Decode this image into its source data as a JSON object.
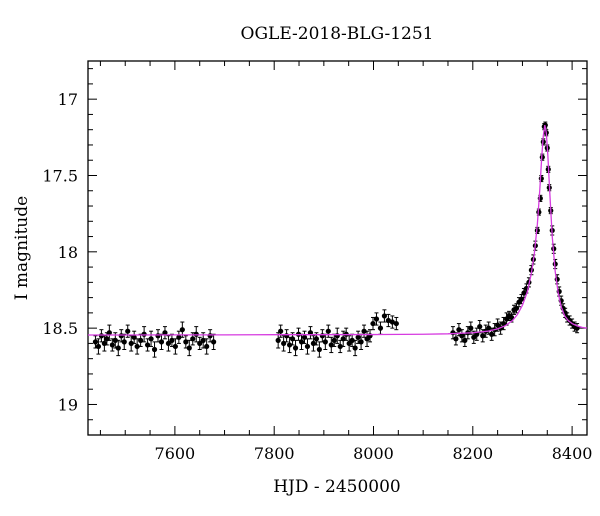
{
  "chart_data": {
    "type": "scatter",
    "title": "OGLE-2018-BLG-1251",
    "xlabel": "HJD - 2450000",
    "ylabel": "I magnitude",
    "xlim": [
      7425,
      8430
    ],
    "ylim": [
      19.2,
      16.75
    ],
    "y_inverted": true,
    "x_ticks": [
      7600,
      7800,
      8000,
      8200,
      8400
    ],
    "x_tick_labels": [
      "7600",
      "7800",
      "8000",
      "8200",
      "8400"
    ],
    "y_ticks": [
      17,
      17.5,
      18,
      18.5,
      19
    ],
    "y_tick_labels": [
      "17",
      "17.5",
      "18",
      "18.5",
      "19"
    ],
    "grid": false,
    "legend": "none",
    "colors": {
      "points": "#000000",
      "errorbars": "#000000",
      "model": "#d63be0"
    },
    "series": [
      {
        "kind": "points_with_errorbars",
        "x": [
          7440,
          7446,
          7452,
          7458,
          7463,
          7468,
          7474,
          7480,
          7486,
          7492,
          7498,
          7505,
          7512,
          7518,
          7524,
          7531,
          7538,
          7545,
          7552,
          7559,
          7566,
          7573,
          7580,
          7587,
          7594,
          7601,
          7608,
          7615,
          7622,
          7629,
          7636,
          7643,
          7650,
          7657,
          7664,
          7671,
          7678,
          7808,
          7813,
          7819,
          7825,
          7831,
          7837,
          7843,
          7849,
          7855,
          7861,
          7867,
          7873,
          7879,
          7885,
          7891,
          7897,
          7903,
          7909,
          7915,
          7921,
          7927,
          7933,
          7939,
          7945,
          7951,
          7957,
          7963,
          7969,
          7975,
          7981,
          7987,
          7993,
          7999,
          8006,
          8014,
          8022,
          8030,
          8038,
          8046,
          8160,
          8166,
          8172,
          8178,
          8184,
          8190,
          8196,
          8202,
          8208,
          8214,
          8220,
          8226,
          8232,
          8238,
          8244,
          8250,
          8256,
          8262,
          8268,
          8273,
          8278,
          8283,
          8288,
          8293,
          8298,
          8303,
          8308,
          8313,
          8318,
          8322,
          8326,
          8330,
          8333,
          8336,
          8338,
          8340,
          8342,
          8344,
          8346,
          8348,
          8350,
          8352,
          8354,
          8357,
          8360,
          8363,
          8366,
          8370,
          8374,
          8378,
          8382,
          8386,
          8390,
          8395,
          8400,
          8405,
          8410
        ],
        "y": [
          18.59,
          18.62,
          18.55,
          18.6,
          18.57,
          18.53,
          18.61,
          18.58,
          18.63,
          18.55,
          18.59,
          18.52,
          18.6,
          18.56,
          18.62,
          18.58,
          18.54,
          18.61,
          18.57,
          18.64,
          18.55,
          18.59,
          18.53,
          18.6,
          18.58,
          18.62,
          18.56,
          18.51,
          18.59,
          18.63,
          18.57,
          18.54,
          18.6,
          18.58,
          18.62,
          18.55,
          18.59,
          18.58,
          18.52,
          18.6,
          18.55,
          18.61,
          18.57,
          18.63,
          18.54,
          18.59,
          18.56,
          18.62,
          18.53,
          18.6,
          18.57,
          18.64,
          18.55,
          18.59,
          18.52,
          18.61,
          18.58,
          18.55,
          18.62,
          18.57,
          18.54,
          18.6,
          18.58,
          18.63,
          18.56,
          18.59,
          18.52,
          18.57,
          18.55,
          18.47,
          18.44,
          18.5,
          18.42,
          18.45,
          18.46,
          18.47,
          18.53,
          18.57,
          18.51,
          18.55,
          18.58,
          18.53,
          18.5,
          18.56,
          18.54,
          18.49,
          18.55,
          18.52,
          18.5,
          18.54,
          18.51,
          18.48,
          18.5,
          18.47,
          18.44,
          18.42,
          18.43,
          18.38,
          18.37,
          18.33,
          18.31,
          18.27,
          18.24,
          18.2,
          18.12,
          18.05,
          17.96,
          17.86,
          17.74,
          17.65,
          17.52,
          17.38,
          17.28,
          17.18,
          17.17,
          17.22,
          17.32,
          17.46,
          17.58,
          17.73,
          17.86,
          17.98,
          18.08,
          18.18,
          18.26,
          18.32,
          18.37,
          18.4,
          18.43,
          18.45,
          18.47,
          18.49,
          18.5
        ],
        "err": [
          0.04,
          0.05,
          0.04,
          0.05,
          0.04,
          0.05,
          0.04,
          0.05,
          0.05,
          0.04,
          0.05,
          0.04,
          0.05,
          0.04,
          0.05,
          0.04,
          0.05,
          0.04,
          0.05,
          0.05,
          0.04,
          0.05,
          0.04,
          0.05,
          0.04,
          0.05,
          0.04,
          0.05,
          0.04,
          0.05,
          0.04,
          0.05,
          0.04,
          0.05,
          0.05,
          0.04,
          0.05,
          0.05,
          0.04,
          0.05,
          0.04,
          0.05,
          0.04,
          0.05,
          0.04,
          0.05,
          0.04,
          0.05,
          0.04,
          0.05,
          0.04,
          0.05,
          0.04,
          0.05,
          0.04,
          0.05,
          0.04,
          0.05,
          0.04,
          0.05,
          0.04,
          0.05,
          0.04,
          0.05,
          0.04,
          0.05,
          0.04,
          0.05,
          0.04,
          0.04,
          0.04,
          0.04,
          0.04,
          0.04,
          0.04,
          0.04,
          0.04,
          0.04,
          0.04,
          0.04,
          0.04,
          0.04,
          0.04,
          0.04,
          0.04,
          0.04,
          0.04,
          0.04,
          0.04,
          0.04,
          0.04,
          0.04,
          0.04,
          0.04,
          0.04,
          0.03,
          0.03,
          0.03,
          0.03,
          0.03,
          0.03,
          0.03,
          0.03,
          0.03,
          0.03,
          0.03,
          0.03,
          0.02,
          0.02,
          0.02,
          0.02,
          0.02,
          0.02,
          0.02,
          0.02,
          0.02,
          0.02,
          0.02,
          0.02,
          0.02,
          0.03,
          0.03,
          0.03,
          0.03,
          0.03,
          0.03,
          0.03,
          0.03,
          0.03,
          0.03,
          0.03,
          0.03,
          0.03
        ]
      },
      {
        "kind": "model_curve",
        "x": [
          7425,
          7500,
          7600,
          7700,
          7800,
          7900,
          8000,
          8100,
          8150,
          8200,
          8230,
          8250,
          8265,
          8280,
          8290,
          8300,
          8310,
          8318,
          8324,
          8330,
          8335,
          8339,
          8342,
          8345,
          8348,
          8351,
          8355,
          8360,
          8366,
          8372,
          8378,
          8385,
          8392,
          8400,
          8410,
          8420,
          8430
        ],
        "y": [
          18.545,
          18.545,
          18.544,
          18.544,
          18.543,
          18.543,
          18.542,
          18.54,
          18.537,
          18.53,
          18.52,
          18.505,
          18.485,
          18.45,
          18.41,
          18.35,
          18.26,
          18.14,
          18.01,
          17.82,
          17.59,
          17.37,
          17.24,
          17.17,
          17.22,
          17.36,
          17.61,
          17.9,
          18.13,
          18.27,
          18.36,
          18.42,
          18.45,
          18.47,
          18.485,
          18.495,
          18.5
        ]
      }
    ]
  }
}
